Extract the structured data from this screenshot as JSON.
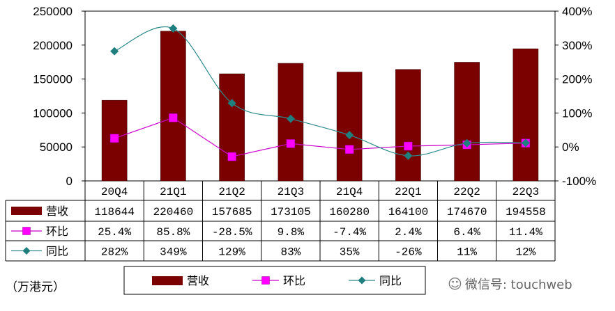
{
  "chart_data": {
    "type": "bar",
    "categories": [
      "20Q4",
      "21Q1",
      "21Q2",
      "21Q3",
      "21Q4",
      "22Q1",
      "22Q2",
      "22Q3"
    ],
    "series": [
      {
        "name": "营收",
        "kind": "bar",
        "axis": "left",
        "color": "#7B0000",
        "values": [
          118644,
          220460,
          157685,
          173105,
          160280,
          164100,
          174670,
          194558
        ]
      },
      {
        "name": "环比",
        "kind": "line",
        "axis": "right",
        "color": "#CC00CC",
        "marker": "square",
        "markerColor": "#FF00FF",
        "values": [
          25.4,
          85.8,
          -28.5,
          9.8,
          -7.4,
          2.4,
          6.4,
          11.4
        ]
      },
      {
        "name": "同比",
        "kind": "smooth-line",
        "axis": "right",
        "color": "#2E8B8B",
        "marker": "diamond",
        "markerColor": "#1F7F7F",
        "values": [
          282,
          349,
          129,
          83,
          35,
          -26,
          11,
          12
        ]
      }
    ],
    "y_left": {
      "min": 0,
      "max": 250000,
      "ticks": [
        "0",
        "50000",
        "100000",
        "150000",
        "200000",
        "250000"
      ]
    },
    "y_right": {
      "min": -100,
      "max": 400,
      "ticks": [
        "-100%",
        "0%",
        "100%",
        "200%",
        "300%",
        "400%"
      ]
    },
    "table": {
      "rows": [
        {
          "label": "营收",
          "cells": [
            "118644",
            "220460",
            "157685",
            "173105",
            "160280",
            "164100",
            "174670",
            "194558"
          ]
        },
        {
          "label": "环比",
          "cells": [
            "25.4%",
            "85.8%",
            "-28.5%",
            "9.8%",
            "-7.4%",
            "2.4%",
            "6.4%",
            "11.4%"
          ]
        },
        {
          "label": "同比",
          "cells": [
            "282%",
            "349%",
            "129%",
            "83%",
            "35%",
            "-26%",
            "11%",
            "12%"
          ]
        }
      ]
    },
    "legend": [
      "营收",
      "环比",
      "同比"
    ],
    "unit_label": "（万港元）"
  },
  "watermark": {
    "text": "微信号: touchweb",
    "icon": "wechat-icon"
  }
}
